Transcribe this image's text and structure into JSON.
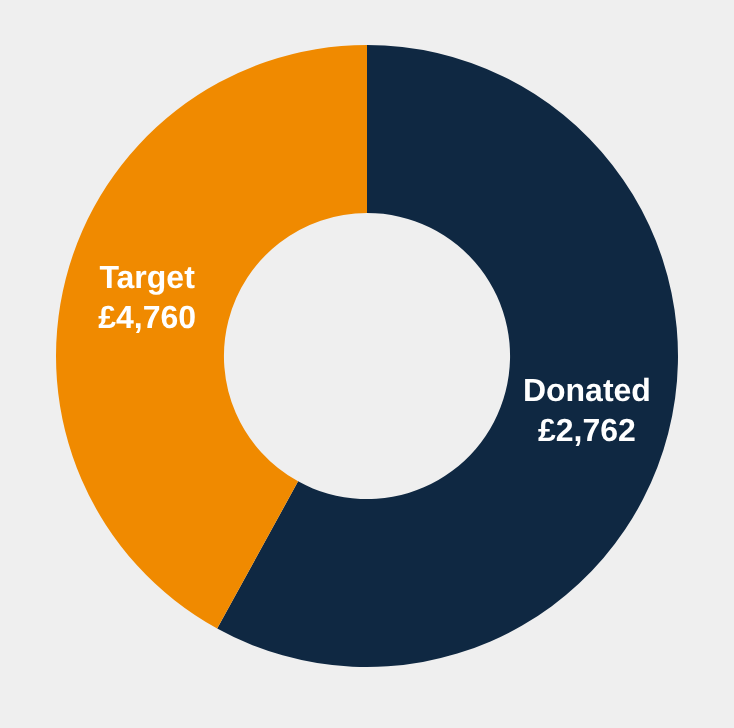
{
  "chart_data": {
    "type": "donut",
    "categories": [
      "Donated",
      "Target"
    ],
    "values": [
      58,
      42
    ],
    "annotations": [
      "£2,762",
      "£4,760"
    ],
    "colors": [
      "#0f2842",
      "#f08a00"
    ],
    "legend": false
  }
}
